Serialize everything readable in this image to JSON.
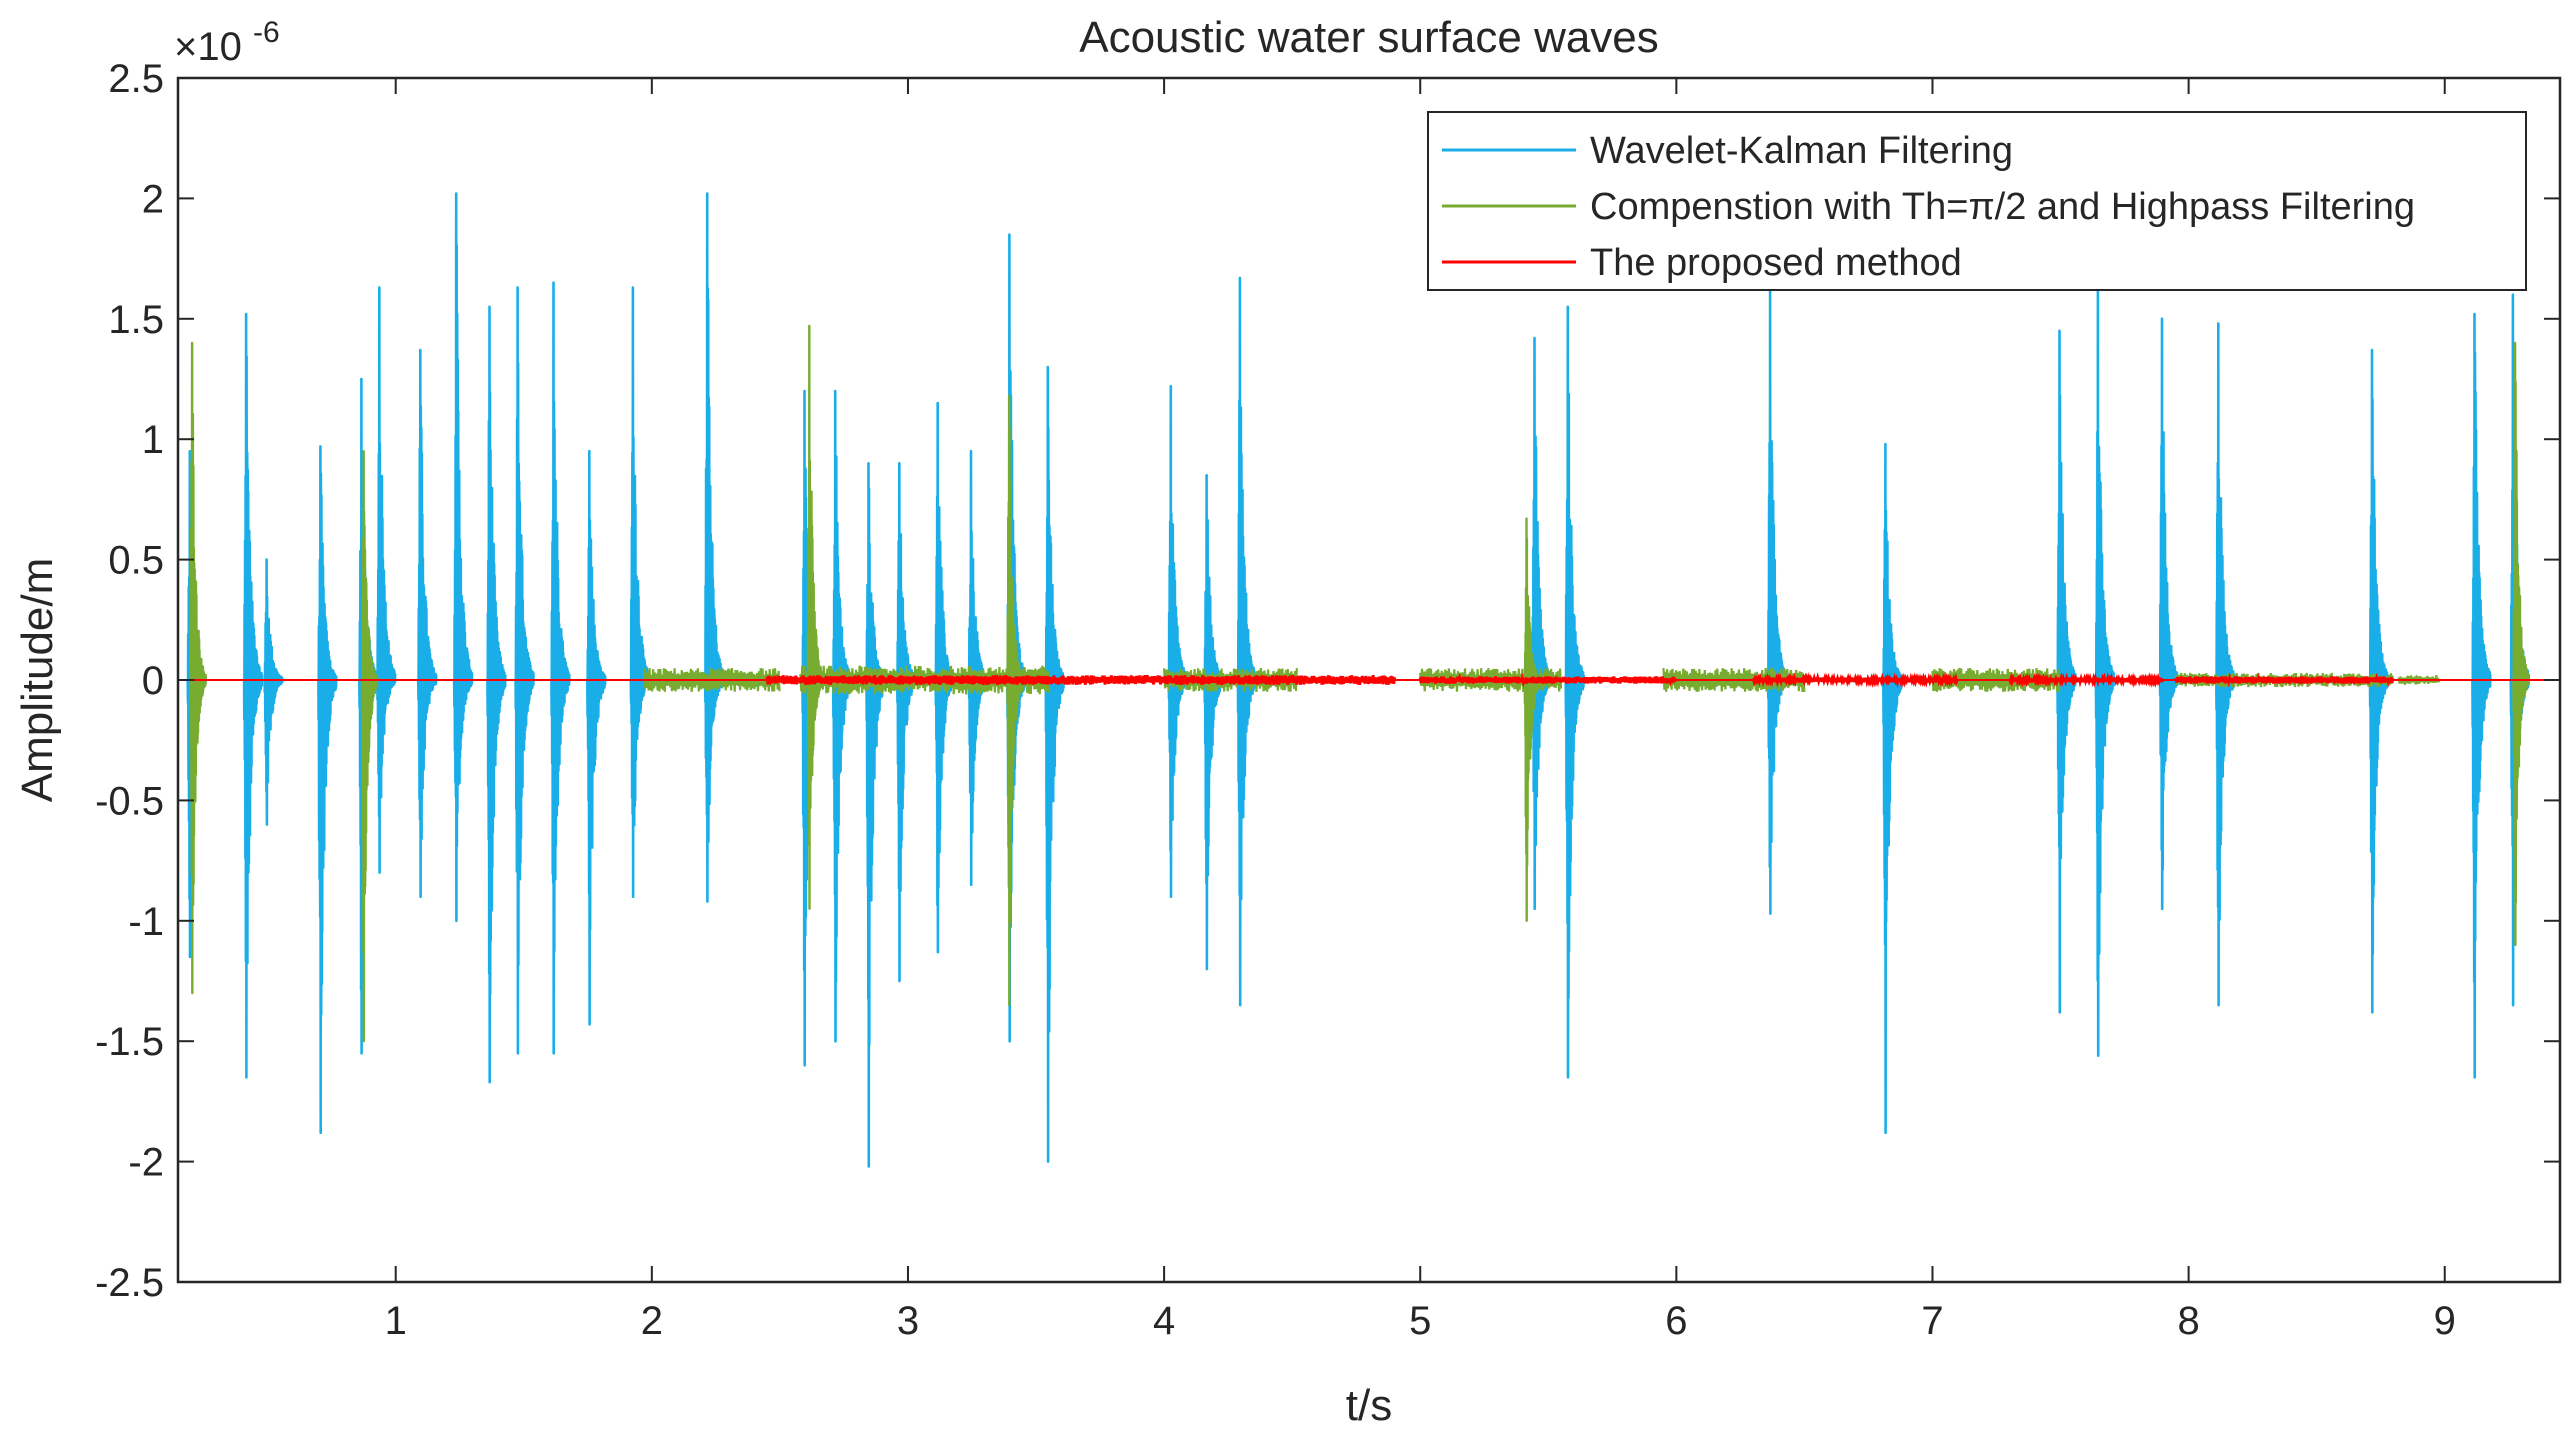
{
  "chart_data": {
    "type": "line",
    "title": "Acoustic water surface waves",
    "xlabel": "t/s",
    "ylabel": "Amplitude/m",
    "y_exponent_label": {
      "base": "×10",
      "exp": "-6"
    },
    "xlim": [
      0.15,
      9.45
    ],
    "ylim": [
      -2.5,
      2.5
    ],
    "y_scale_factor": 1e-06,
    "xticks": [
      1,
      2,
      3,
      4,
      5,
      6,
      7,
      8,
      9
    ],
    "xtick_labels": [
      "1",
      "2",
      "3",
      "4",
      "5",
      "6",
      "7",
      "8",
      "9"
    ],
    "yticks": [
      -2.5,
      -2,
      -1.5,
      -1,
      -0.5,
      0,
      0.5,
      1,
      1.5,
      2,
      2.5
    ],
    "ytick_labels": [
      "-2.5",
      "-2",
      "-1.5",
      "-1",
      "-0.5",
      "0",
      "0.5",
      "1",
      "1.5",
      "2",
      "2.5"
    ],
    "grid": false,
    "legend_position": "top-right",
    "series": [
      {
        "name": "Wavelet-Kalman Filtering",
        "color": "#1aaee9",
        "bursts": [
          {
            "t": 0.2,
            "max": 0.95,
            "min": -1.15
          },
          {
            "t": 0.42,
            "max": 1.52,
            "min": -1.65
          },
          {
            "t": 0.5,
            "max": 0.5,
            "min": -0.6
          },
          {
            "t": 0.71,
            "max": 0.97,
            "min": -1.88
          },
          {
            "t": 0.87,
            "max": 1.25,
            "min": -1.55
          },
          {
            "t": 0.94,
            "max": 1.63,
            "min": -0.8
          },
          {
            "t": 1.1,
            "max": 1.37,
            "min": -0.9
          },
          {
            "t": 1.24,
            "max": 2.02,
            "min": -1.0
          },
          {
            "t": 1.37,
            "max": 1.55,
            "min": -1.67
          },
          {
            "t": 1.48,
            "max": 1.63,
            "min": -1.55
          },
          {
            "t": 1.62,
            "max": 1.65,
            "min": -1.55
          },
          {
            "t": 1.76,
            "max": 0.95,
            "min": -1.43
          },
          {
            "t": 1.93,
            "max": 1.63,
            "min": -0.9
          },
          {
            "t": 2.22,
            "max": 2.02,
            "min": -0.92
          },
          {
            "t": 2.6,
            "max": 1.2,
            "min": -1.6
          },
          {
            "t": 2.72,
            "max": 1.2,
            "min": -1.5
          },
          {
            "t": 2.85,
            "max": 0.9,
            "min": -2.02
          },
          {
            "t": 2.97,
            "max": 0.9,
            "min": -1.25
          },
          {
            "t": 3.12,
            "max": 1.15,
            "min": -1.13
          },
          {
            "t": 3.25,
            "max": 0.95,
            "min": -0.85
          },
          {
            "t": 3.4,
            "max": 1.85,
            "min": -1.5
          },
          {
            "t": 3.55,
            "max": 1.3,
            "min": -2.0
          },
          {
            "t": 4.03,
            "max": 1.22,
            "min": -0.9
          },
          {
            "t": 4.17,
            "max": 0.85,
            "min": -1.2
          },
          {
            "t": 4.3,
            "max": 1.67,
            "min": -1.35
          },
          {
            "t": 5.45,
            "max": 1.42,
            "min": -0.95
          },
          {
            "t": 5.58,
            "max": 1.55,
            "min": -1.65
          },
          {
            "t": 6.37,
            "max": 1.65,
            "min": -0.97
          },
          {
            "t": 6.82,
            "max": 0.98,
            "min": -1.88
          },
          {
            "t": 7.5,
            "max": 1.45,
            "min": -1.38
          },
          {
            "t": 7.65,
            "max": 1.62,
            "min": -1.56
          },
          {
            "t": 7.9,
            "max": 1.5,
            "min": -0.95
          },
          {
            "t": 8.12,
            "max": 1.48,
            "min": -1.35
          },
          {
            "t": 8.72,
            "max": 1.37,
            "min": -1.38
          },
          {
            "t": 9.12,
            "max": 1.52,
            "min": -1.65
          },
          {
            "t": 9.27,
            "max": 1.6,
            "min": -1.35
          }
        ]
      },
      {
        "name": "Compenstion with Th=π/2 and Highpass Filtering",
        "color": "#77ac30",
        "bursts": [
          {
            "t": 0.21,
            "max": 1.4,
            "min": -1.3
          },
          {
            "t": 0.88,
            "max": 0.95,
            "min": -1.5
          },
          {
            "t": 2.62,
            "max": 1.47,
            "min": -0.95
          },
          {
            "t": 3.4,
            "max": 1.18,
            "min": -1.35
          },
          {
            "t": 5.42,
            "max": 0.67,
            "min": -1.0
          },
          {
            "t": 9.28,
            "max": 1.4,
            "min": -1.1
          }
        ],
        "noise_bands": [
          {
            "start": 1.97,
            "end": 2.5,
            "amplitude": 0.05
          },
          {
            "start": 2.58,
            "end": 3.55,
            "amplitude": 0.06
          },
          {
            "start": 4.0,
            "end": 4.52,
            "amplitude": 0.05
          },
          {
            "start": 5.0,
            "end": 5.55,
            "amplitude": 0.05
          },
          {
            "start": 5.95,
            "end": 6.5,
            "amplitude": 0.05
          },
          {
            "start": 7.0,
            "end": 7.5,
            "amplitude": 0.05
          },
          {
            "start": 7.95,
            "end": 8.8,
            "amplitude": 0.03
          },
          {
            "start": 8.82,
            "end": 8.98,
            "amplitude": 0.02
          }
        ]
      },
      {
        "name": "The proposed method",
        "color": "#ff0000",
        "noise_bands": [
          {
            "start": 2.45,
            "end": 4.9,
            "amplitude": 0.02
          },
          {
            "start": 5.0,
            "end": 6.0,
            "amplitude": 0.015
          },
          {
            "start": 6.3,
            "end": 7.1,
            "amplitude": 0.01
          },
          {
            "start": 7.3,
            "end": 7.9,
            "amplitude": 0.01
          },
          {
            "start": 7.95,
            "end": 8.8,
            "amplitude": 0.015
          }
        ]
      }
    ]
  }
}
